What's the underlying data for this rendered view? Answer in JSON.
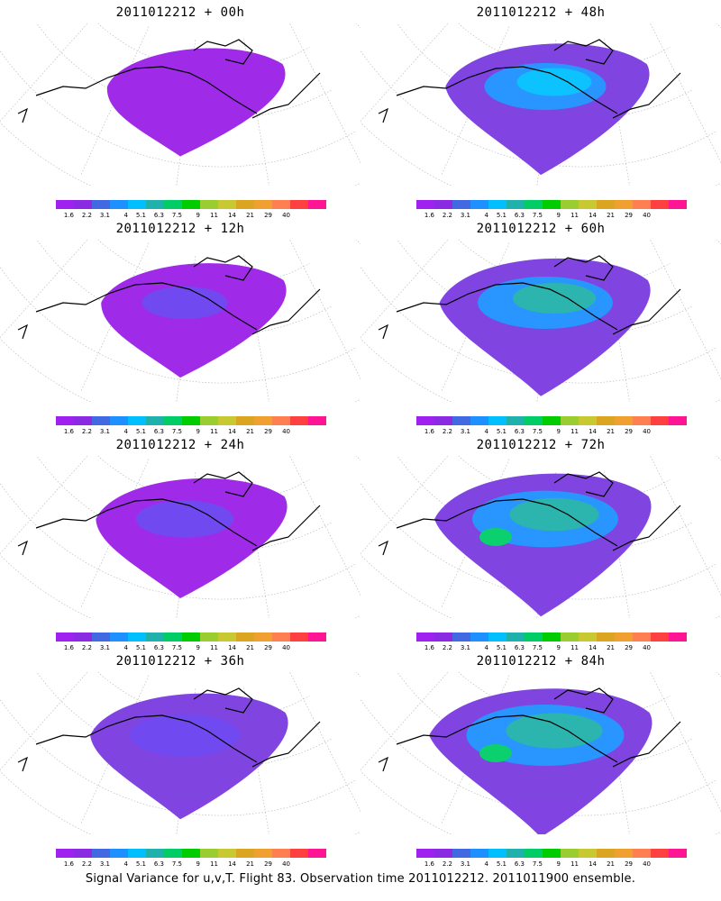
{
  "panels": [
    {
      "title": "2011012212 + 00h",
      "level": 0.0
    },
    {
      "title": "2011012212 + 48h",
      "level": 0.55
    },
    {
      "title": "2011012212 + 12h",
      "level": 0.15
    },
    {
      "title": "2011012212 + 60h",
      "level": 0.7
    },
    {
      "title": "2011012212 + 24h",
      "level": 0.28
    },
    {
      "title": "2011012212 + 72h",
      "level": 0.82
    },
    {
      "title": "2011012212 + 36h",
      "level": 0.42
    },
    {
      "title": "2011012212 + 84h",
      "level": 0.95
    }
  ],
  "colorbar": {
    "colors": [
      "#a020f0",
      "#8a2be2",
      "#4169e1",
      "#1e90ff",
      "#00bfff",
      "#20b2aa",
      "#00cd66",
      "#00cd00",
      "#9acd32",
      "#c8c832",
      "#daa520",
      "#f0a030",
      "#ff7f50",
      "#ff4040",
      "#ff1493"
    ],
    "labels": [
      "1.6",
      "2.2",
      "3.1",
      "4",
      "5.1",
      "6.3",
      "7.5",
      "9",
      "11",
      "14",
      "21",
      "29",
      "40",
      "",
      ""
    ]
  },
  "footer": "Signal Variance for u,v,T. Flight 83. Observation time 2011012212. 2011011900 ensemble."
}
